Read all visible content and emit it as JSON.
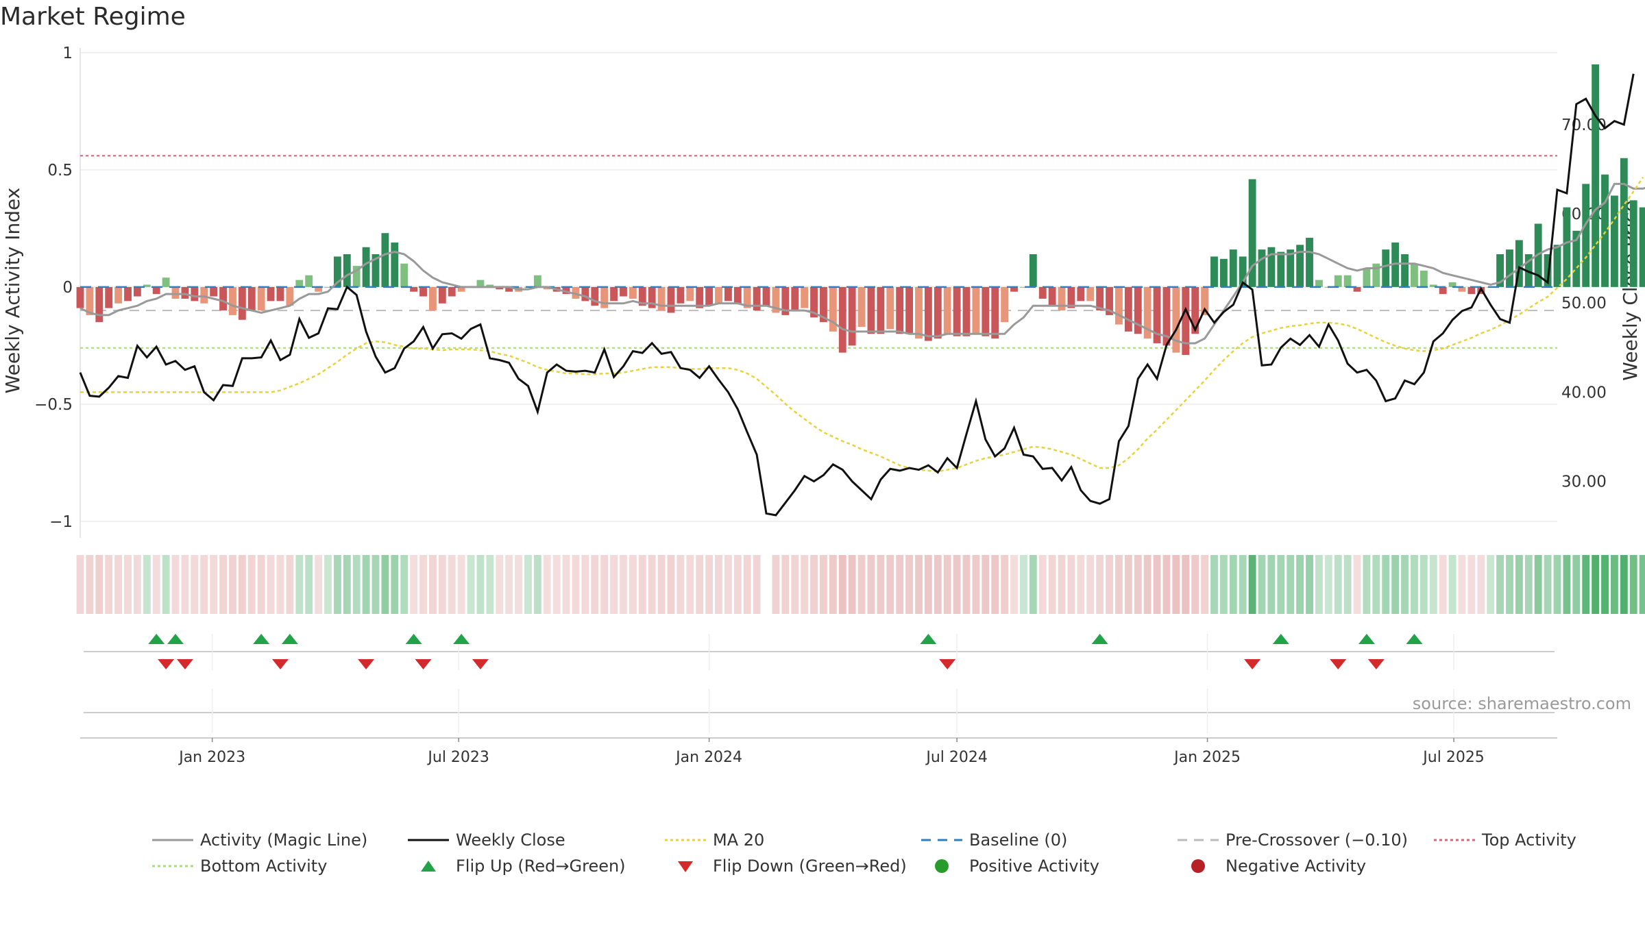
{
  "title": "Market Regime",
  "source": "source: sharemaestro.com",
  "chart_data": {
    "type": "bar",
    "title": "Market Regime",
    "left_axis": {
      "label": "Weekly Activity Index",
      "ylim": [
        -1.05,
        1.02
      ],
      "ticks": [
        1,
        0.5,
        0,
        -0.5,
        -1
      ],
      "tick_labels": [
        "1",
        "0.5",
        "0",
        "−0.5",
        "−1"
      ]
    },
    "right_axis": {
      "label": "Weekly Close Price",
      "ylim": [
        24.2,
        78.6
      ],
      "ticks": [
        70,
        60,
        50,
        40,
        30
      ],
      "tick_labels": [
        "70.00",
        "60.00",
        "50.00",
        "40.00",
        "30.00"
      ]
    },
    "x_axis": {
      "range": [
        "2022-09-26",
        "2025-09-15"
      ],
      "ticks": [
        "2023-01-01",
        "2023-07-01",
        "2024-01-01",
        "2024-07-01",
        "2025-01-01",
        "2025-07-01"
      ],
      "tick_labels": [
        "Jan 2023",
        "Jul 2023",
        "Jan 2024",
        "Jul 2024",
        "Jan 2025",
        "Jul 2025"
      ]
    },
    "reference_lines": {
      "baseline": 0,
      "pre_crossover": -0.1,
      "top_activity": 0.56,
      "bottom_activity": -0.26
    },
    "weeks_start": "2022-09-26",
    "week_step_days": 7,
    "activity": [
      -0.09,
      -0.12,
      -0.15,
      -0.09,
      -0.07,
      -0.06,
      -0.04,
      0.01,
      -0.03,
      0.04,
      -0.05,
      -0.05,
      -0.06,
      -0.07,
      -0.04,
      -0.1,
      -0.12,
      -0.14,
      -0.1,
      -0.1,
      -0.06,
      -0.06,
      -0.08,
      0.03,
      0.05,
      -0.02,
      0.0,
      0.13,
      0.14,
      0.09,
      0.17,
      0.14,
      0.23,
      0.19,
      0.1,
      -0.02,
      -0.04,
      -0.1,
      -0.07,
      -0.04,
      -0.02,
      0.0,
      0.03,
      0.01,
      -0.01,
      -0.02,
      -0.02,
      0.0,
      0.05,
      -0.01,
      -0.02,
      -0.03,
      -0.05,
      -0.06,
      -0.08,
      -0.09,
      -0.06,
      -0.04,
      -0.05,
      -0.08,
      -0.09,
      -0.1,
      -0.11,
      -0.07,
      -0.06,
      -0.09,
      -0.08,
      -0.07,
      -0.06,
      -0.07,
      -0.09,
      -0.1,
      -0.08,
      -0.11,
      -0.12,
      -0.1,
      -0.09,
      -0.13,
      -0.15,
      -0.19,
      -0.28,
      -0.25,
      -0.17,
      -0.2,
      -0.2,
      -0.18,
      -0.2,
      -0.2,
      -0.22,
      -0.23,
      -0.22,
      -0.2,
      -0.21,
      -0.21,
      -0.2,
      -0.21,
      -0.22,
      -0.15,
      -0.02,
      0.0,
      0.14,
      -0.05,
      -0.08,
      -0.1,
      -0.09,
      -0.06,
      -0.06,
      -0.1,
      -0.12,
      -0.16,
      -0.19,
      -0.2,
      -0.22,
      -0.24,
      -0.25,
      -0.28,
      -0.29,
      -0.2,
      -0.12,
      0.13,
      0.12,
      0.16,
      0.13,
      0.46,
      0.16,
      0.17,
      0.15,
      0.16,
      0.18,
      0.21,
      0.03,
      0.0,
      0.05,
      0.05,
      -0.02,
      0.08,
      0.1,
      0.16,
      0.19,
      0.14,
      0.1,
      0.07,
      0.01,
      -0.03,
      0.02,
      -0.02,
      -0.03,
      -0.03,
      0.0,
      0.14,
      0.16,
      0.2,
      0.14,
      0.27,
      0.14,
      0.18,
      0.34,
      0.24,
      0.44,
      0.95,
      0.48,
      0.39,
      0.55,
      0.37,
      0.34,
      0.46
    ],
    "activity_ma": [
      -0.09,
      -0.11,
      -0.12,
      -0.12,
      -0.1,
      -0.09,
      -0.08,
      -0.06,
      -0.05,
      -0.03,
      -0.03,
      -0.03,
      -0.04,
      -0.04,
      -0.05,
      -0.06,
      -0.08,
      -0.09,
      -0.1,
      -0.11,
      -0.1,
      -0.09,
      -0.08,
      -0.05,
      -0.03,
      -0.03,
      -0.02,
      0.02,
      0.05,
      0.07,
      0.1,
      0.12,
      0.14,
      0.15,
      0.14,
      0.11,
      0.07,
      0.04,
      0.02,
      0.01,
      0.0,
      0.0,
      0.0,
      0.0,
      0.0,
      0.0,
      -0.01,
      -0.01,
      0.0,
      0.0,
      -0.01,
      -0.02,
      -0.03,
      -0.04,
      -0.06,
      -0.07,
      -0.07,
      -0.07,
      -0.06,
      -0.07,
      -0.07,
      -0.08,
      -0.08,
      -0.08,
      -0.08,
      -0.08,
      -0.08,
      -0.07,
      -0.07,
      -0.07,
      -0.08,
      -0.08,
      -0.08,
      -0.09,
      -0.1,
      -0.1,
      -0.1,
      -0.11,
      -0.13,
      -0.15,
      -0.18,
      -0.19,
      -0.19,
      -0.19,
      -0.19,
      -0.19,
      -0.19,
      -0.2,
      -0.2,
      -0.21,
      -0.21,
      -0.2,
      -0.2,
      -0.2,
      -0.2,
      -0.2,
      -0.2,
      -0.2,
      -0.16,
      -0.13,
      -0.08,
      -0.08,
      -0.08,
      -0.08,
      -0.08,
      -0.08,
      -0.08,
      -0.09,
      -0.1,
      -0.12,
      -0.14,
      -0.16,
      -0.18,
      -0.2,
      -0.21,
      -0.23,
      -0.24,
      -0.24,
      -0.22,
      -0.16,
      -0.1,
      -0.04,
      0.02,
      0.09,
      0.12,
      0.14,
      0.14,
      0.14,
      0.15,
      0.15,
      0.14,
      0.12,
      0.1,
      0.08,
      0.07,
      0.08,
      0.08,
      0.09,
      0.1,
      0.1,
      0.1,
      0.09,
      0.08,
      0.06,
      0.05,
      0.04,
      0.03,
      0.02,
      0.01,
      0.02,
      0.05,
      0.08,
      0.11,
      0.14,
      0.16,
      0.17,
      0.19,
      0.2,
      0.27,
      0.33,
      0.36,
      0.44,
      0.44,
      0.42,
      0.42,
      0.43
    ],
    "close": [
      42.2,
      39.6,
      39.5,
      40.5,
      41.8,
      41.6,
      45.2,
      43.9,
      45.1,
      43.1,
      43.5,
      42.5,
      42.9,
      40.0,
      39.1,
      40.8,
      40.7,
      43.8,
      43.8,
      43.9,
      45.8,
      43.6,
      44.2,
      48.2,
      46.1,
      46.6,
      49.4,
      49.3,
      51.8,
      50.9,
      46.8,
      44.0,
      42.2,
      42.7,
      44.9,
      45.7,
      47.3,
      44.9,
      46.5,
      46.6,
      46.0,
      47.1,
      47.6,
      43.8,
      43.6,
      43.3,
      41.5,
      40.7,
      37.8,
      42.2,
      43.1,
      42.4,
      42.3,
      42.4,
      42.2,
      44.8,
      41.7,
      42.9,
      44.6,
      44.4,
      45.5,
      44.3,
      44.5,
      42.7,
      42.5,
      41.6,
      42.9,
      41.4,
      40.0,
      38.1,
      35.5,
      33.0,
      26.4,
      26.2,
      27.6,
      29.0,
      30.6,
      30.0,
      30.7,
      31.9,
      31.3,
      30.0,
      29.0,
      28.0,
      30.2,
      31.4,
      31.2,
      31.5,
      31.3,
      31.8,
      31.0,
      32.6,
      31.5,
      35.3,
      39.0,
      34.7,
      32.8,
      33.7,
      36.0,
      33.0,
      32.8,
      31.4,
      31.5,
      30.1,
      31.6,
      29.0,
      27.8,
      27.5,
      28.0,
      34.5,
      36.2,
      41.5,
      43.1,
      41.5,
      45.3,
      47.0,
      49.3,
      47.0,
      49.3,
      47.8,
      49.0,
      49.8,
      52.3,
      51.5,
      43.0,
      43.1,
      45.0,
      46.0,
      45.3,
      46.4,
      45.1,
      47.6,
      45.8,
      43.2,
      42.2,
      42.5,
      41.3,
      39.0,
      39.3,
      41.3,
      40.9,
      42.2,
      45.7,
      46.6,
      48.1,
      49.1,
      49.5,
      51.6,
      49.8,
      48.2,
      47.8,
      54.0,
      53.5,
      53.1,
      52.3,
      62.7,
      62.3,
      72.3,
      72.9,
      71.0,
      69.6,
      70.4,
      70.0,
      75.7
    ],
    "close_ma20": [
      40.0,
      40.0,
      40.0,
      40.0,
      40.0,
      40.0,
      40.0,
      40.0,
      40.0,
      40.0,
      40.0,
      40.0,
      40.0,
      40.0,
      40.0,
      40.0,
      40.0,
      40.0,
      40.0,
      40.0,
      40.0,
      40.2,
      40.6,
      41.0,
      41.5,
      42.0,
      42.7,
      43.4,
      44.2,
      44.9,
      45.5,
      45.7,
      45.6,
      45.3,
      45.1,
      44.9,
      44.9,
      44.8,
      44.7,
      44.8,
      44.8,
      44.8,
      44.7,
      44.6,
      44.3,
      44.1,
      43.7,
      43.3,
      42.8,
      42.5,
      42.3,
      42.1,
      42.1,
      42.0,
      42.0,
      42.1,
      42.1,
      42.2,
      42.4,
      42.6,
      42.8,
      42.8,
      42.8,
      42.7,
      42.6,
      42.6,
      42.7,
      42.7,
      42.7,
      42.5,
      42.1,
      41.5,
      40.6,
      39.7,
      38.7,
      37.8,
      37.0,
      36.2,
      35.5,
      35.0,
      34.5,
      34.1,
      33.6,
      33.2,
      32.8,
      32.3,
      31.8,
      31.5,
      31.3,
      31.2,
      31.1,
      31.3,
      31.5,
      31.9,
      32.3,
      32.6,
      32.8,
      33.0,
      33.3,
      33.6,
      33.9,
      33.8,
      33.6,
      33.3,
      33.0,
      32.5,
      32.0,
      31.5,
      31.5,
      31.8,
      32.6,
      33.6,
      34.8,
      35.8,
      36.9,
      38.0,
      39.1,
      40.2,
      41.3,
      42.5,
      43.6,
      44.6,
      45.5,
      46.2,
      46.6,
      46.9,
      47.2,
      47.4,
      47.5,
      47.7,
      47.8,
      47.8,
      47.7,
      47.5,
      47.1,
      46.6,
      46.1,
      45.6,
      45.2,
      44.9,
      44.7,
      44.6,
      44.7,
      44.9,
      45.3,
      45.7,
      46.1,
      46.6,
      47.0,
      47.5,
      48.1,
      48.7,
      49.4,
      50.1,
      50.7,
      51.7,
      52.7,
      53.9,
      55.1,
      56.5,
      57.9,
      59.4,
      61.0,
      62.5,
      64.1
    ],
    "flip_up_dates": [
      "2022-11-21",
      "2022-12-05",
      "2023-02-06",
      "2023-02-27",
      "2023-05-29",
      "2023-07-03",
      "2024-06-10",
      "2024-10-14",
      "2025-02-24",
      "2025-04-28",
      "2025-06-02"
    ],
    "flip_down_dates": [
      "2022-11-28",
      "2022-12-12",
      "2023-02-20",
      "2023-04-24",
      "2023-06-05",
      "2023-07-17",
      "2024-06-24",
      "2025-02-03",
      "2025-04-07",
      "2025-05-05"
    ],
    "gap_week": "2024-02-12",
    "series": [
      {
        "name": "Activity (Magic Line)",
        "color": "#999999"
      },
      {
        "name": "Weekly Close",
        "color": "#111111"
      },
      {
        "name": "MA 20",
        "color": "#e6d33b"
      },
      {
        "name": "Baseline (0)",
        "color": "#2f7fbf"
      },
      {
        "name": "Pre-Crossover (−0.10)",
        "color": "#bbbbbb"
      },
      {
        "name": "Top Activity",
        "color": "#d9667a"
      },
      {
        "name": "Bottom Activity",
        "color": "#a9dc79"
      },
      {
        "name": "Flip Up (Red→Green)",
        "color": "#22a34a"
      },
      {
        "name": "Flip Down (Green→Red)",
        "color": "#d42a2a"
      },
      {
        "name": "Positive Activity",
        "color": "#279c2a"
      },
      {
        "name": "Negative Activity",
        "color": "#b62026"
      }
    ],
    "colors": {
      "pos_dark": "#2e8b57",
      "pos_light": "#7fbf7f",
      "neg_dark": "#c9575a",
      "neg_light": "#e8967a",
      "regime_pos": "#b9e2c2",
      "regime_neg": "#eec8c8"
    }
  },
  "legend": [
    {
      "label": "Activity (Magic Line)",
      "symbol": "line",
      "color": "#999999"
    },
    {
      "label": "Weekly Close",
      "symbol": "line",
      "color": "#111111"
    },
    {
      "label": "MA 20",
      "symbol": "dotted",
      "color": "#e6d33b"
    },
    {
      "label": "Baseline (0)",
      "symbol": "dashed",
      "color": "#2f7fbf"
    },
    {
      "label": "Pre-Crossover (−0.10)",
      "symbol": "dashed",
      "color": "#bbbbbb"
    },
    {
      "label": "Top Activity",
      "symbol": "dotted",
      "color": "#d9667a"
    },
    {
      "label": "Bottom Activity",
      "symbol": "dotted",
      "color": "#a9dc79"
    },
    {
      "label": "Flip Up (Red→Green)",
      "symbol": "tri-up",
      "color": "#22a34a"
    },
    {
      "label": "Flip Down (Green→Red)",
      "symbol": "tri-down",
      "color": "#d42a2a"
    },
    {
      "label": "Positive Activity",
      "symbol": "dot",
      "color": "#279c2a"
    },
    {
      "label": "Negative Activity",
      "symbol": "dot",
      "color": "#b62026"
    }
  ]
}
